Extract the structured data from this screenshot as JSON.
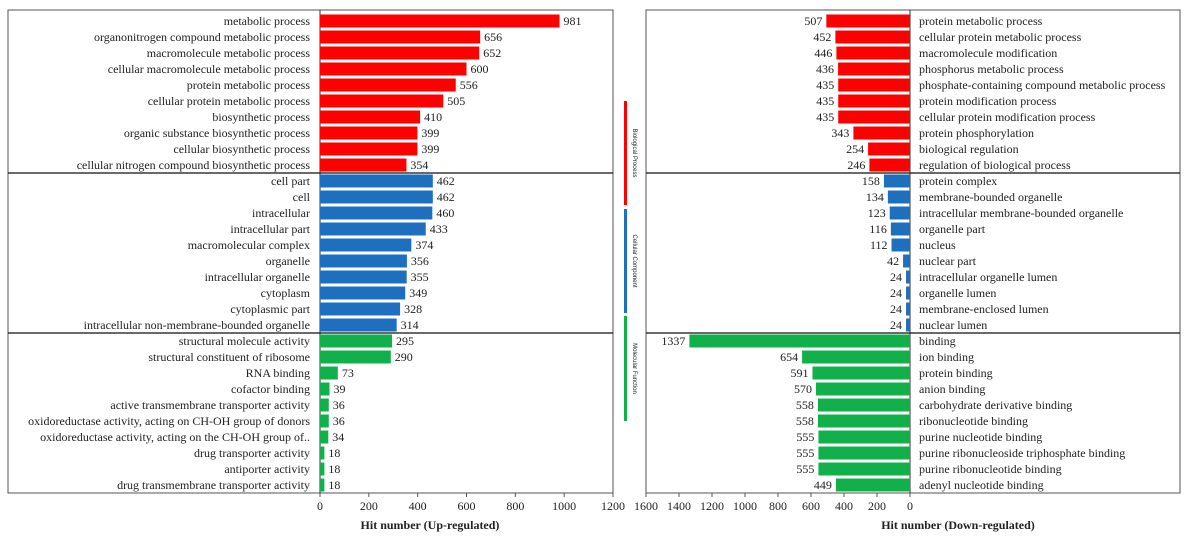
{
  "chart_data": [
    {
      "type": "bar",
      "orientation": "horizontal",
      "title": "",
      "xlabel": "Hit number (Up-regulated)",
      "xlim": [
        0,
        1200
      ],
      "xticks": [
        0,
        200,
        400,
        600,
        800,
        1000,
        1200
      ],
      "series": [
        {
          "name": "Biological Process",
          "color": "#ff0000",
          "categories": [
            "metabolic process",
            "organonitrogen compound metabolic process",
            "macromolecule metabolic process",
            "cellular macromolecule metabolic process",
            "protein metabolic process",
            "cellular protein metabolic process",
            "biosynthetic process",
            "organic substance biosynthetic process",
            "cellular biosynthetic process",
            "cellular nitrogen compound biosynthetic process"
          ],
          "values": [
            981,
            656,
            652,
            600,
            556,
            505,
            410,
            399,
            399,
            354
          ]
        },
        {
          "name": "Cellular Component",
          "color": "#1f6fbf",
          "categories": [
            "cell part",
            "cell",
            "intracellular",
            "intracellular part",
            "macromolecular complex",
            "organelle",
            "intracellular organelle",
            "cytoplasm",
            "cytoplasmic part",
            "intracellular non-membrane-bounded organelle"
          ],
          "values": [
            462,
            462,
            460,
            433,
            374,
            356,
            355,
            349,
            328,
            314
          ]
        },
        {
          "name": "Molecular Function",
          "color": "#12b04a",
          "categories": [
            "structural molecule activity",
            "structural constituent of ribosome",
            "RNA binding",
            "cofactor binding",
            "active transmembrane transporter activity",
            "oxidoreductase activity, acting on CH-OH group of donors",
            "oxidoreductase activity, acting on the CH-OH group of..",
            "drug transporter activity",
            "antiporter activity",
            "drug transmembrane transporter activity"
          ],
          "values": [
            295,
            290,
            73,
            39,
            36,
            36,
            34,
            18,
            18,
            18
          ]
        }
      ]
    },
    {
      "type": "bar",
      "orientation": "horizontal",
      "title": "",
      "xlabel": "Hit number (Down-regulated)",
      "xlim": [
        1600,
        0
      ],
      "xticks": [
        1600,
        1400,
        1200,
        1000,
        800,
        600,
        400,
        200,
        0
      ],
      "series": [
        {
          "name": "Biological Process",
          "color": "#ff0000",
          "categories": [
            "protein metabolic process",
            "cellular protein metabolic process",
            "macromolecule modification",
            "phosphorus metabolic process",
            "phosphate-containing compound metabolic process",
            "protein modification process",
            "cellular protein modification process",
            "protein phosphorylation",
            "biological regulation",
            "regulation of biological process"
          ],
          "values": [
            507,
            452,
            446,
            436,
            435,
            435,
            435,
            343,
            254,
            246
          ]
        },
        {
          "name": "Cellular Component",
          "color": "#1f6fbf",
          "categories": [
            "protein complex",
            "membrane-bounded organelle",
            "intracellular membrane-bounded organelle",
            "organelle part",
            "nucleus",
            "nuclear part",
            "intracellular organelle lumen",
            "organelle lumen",
            "membrane-enclosed lumen",
            "nuclear lumen"
          ],
          "values": [
            158,
            134,
            123,
            116,
            112,
            42,
            24,
            24,
            24,
            24
          ]
        },
        {
          "name": "Molecular Function",
          "color": "#12b04a",
          "categories": [
            "binding",
            "ion binding",
            "protein binding",
            "anion binding",
            "carbohydrate derivative binding",
            "ribonucleotide binding",
            "purine nucleotide binding",
            "purine ribonucleoside triphosphate binding",
            "purine ribonucleotide binding",
            "adenyl nucleotide binding"
          ],
          "values": [
            1337,
            654,
            591,
            570,
            558,
            558,
            555,
            555,
            555,
            449
          ]
        }
      ]
    }
  ],
  "legend": {
    "items": [
      {
        "label": "Biological Process",
        "color": "#ff0000"
      },
      {
        "label": "Cellular Component",
        "color": "#1f6fbf"
      },
      {
        "label": "Molecular Function",
        "color": "#12b04a"
      }
    ]
  }
}
